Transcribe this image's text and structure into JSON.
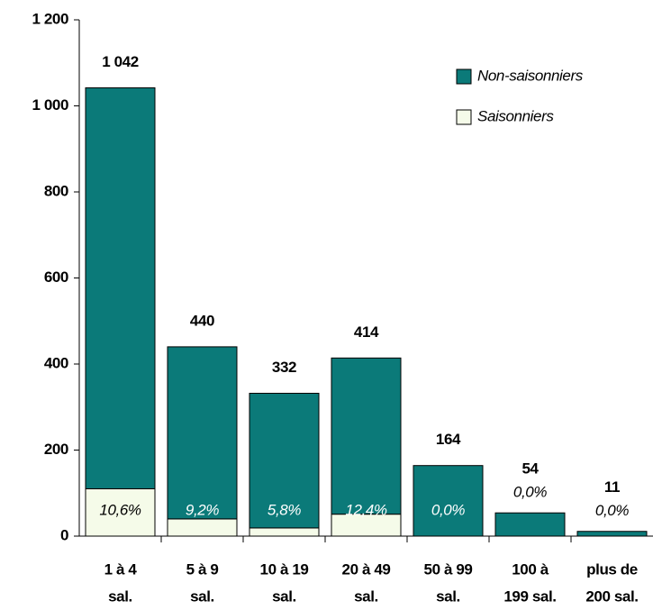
{
  "chart_data": {
    "type": "stacked_bar",
    "categories": [
      [
        "1 à 4",
        "sal."
      ],
      [
        "5 à 9",
        "sal."
      ],
      [
        "10 à 19",
        "sal."
      ],
      [
        "20 à 49",
        "sal."
      ],
      [
        "50 à 99",
        "sal."
      ],
      [
        "100 à",
        "199 sal."
      ],
      [
        "plus de",
        "200 sal."
      ]
    ],
    "series": [
      {
        "name": "Saisonniers",
        "color": "#f5fbe9",
        "values": [
          110,
          40,
          19,
          51,
          0,
          0,
          0
        ]
      },
      {
        "name": "Non-saisonniers",
        "color": "#0b7a79",
        "values": [
          932,
          400,
          313,
          363,
          164,
          54,
          11
        ]
      }
    ],
    "totals": [
      1042,
      440,
      332,
      414,
      164,
      54,
      11
    ],
    "total_labels": [
      "1 042",
      "440",
      "332",
      "414",
      "164",
      "54",
      "11"
    ],
    "shares": [
      10.6,
      9.2,
      5.8,
      12.4,
      0.0,
      0.0,
      0.0
    ],
    "share_labels": [
      "10,6%",
      "9,2%",
      "5,8%",
      "12,4%",
      "0,0%",
      "0,0%",
      "0,0%"
    ],
    "ylim": [
      0,
      1200
    ],
    "yticks": [
      0,
      200,
      400,
      600,
      800,
      {
        "value": 1000,
        "label": "1 000"
      },
      {
        "value": 1200,
        "label": "1 200"
      }
    ],
    "legend": "top-right"
  }
}
